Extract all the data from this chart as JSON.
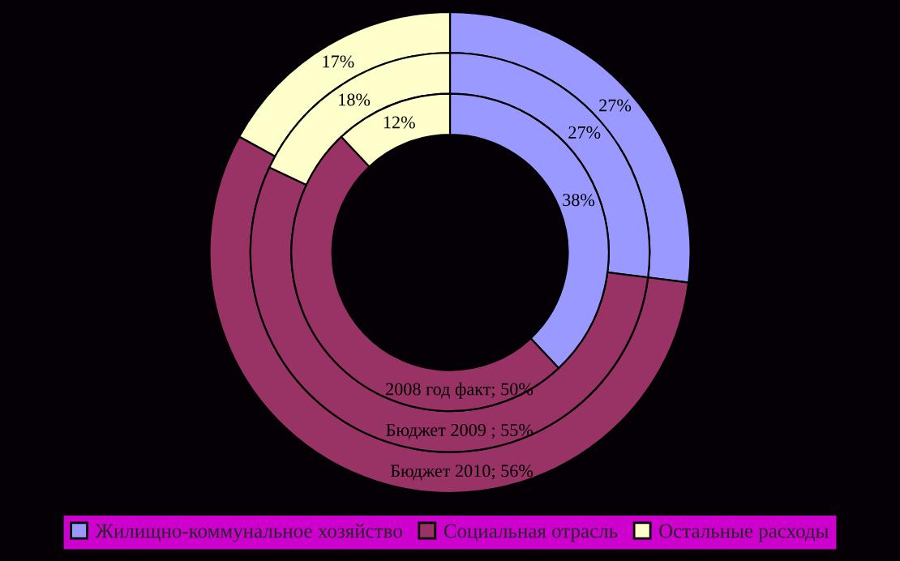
{
  "chart_data": {
    "type": "donut",
    "categories": [
      "Жилищно-коммунальное хозяйство",
      "Социальная отрасль",
      "Остальные расходы"
    ],
    "colors": [
      "#9999ff",
      "#993366",
      "#ffffcc"
    ],
    "series": [
      {
        "name": "Бюджет 2010",
        "values": [
          27,
          56,
          17
        ],
        "value_labels": [
          "27%",
          "; 56%",
          "17%"
        ]
      },
      {
        "name": "Бюджет 2009 ",
        "values": [
          27,
          55,
          18
        ],
        "value_labels": [
          "27%",
          "; 55%",
          "18%"
        ]
      },
      {
        "name": "2008 год факт",
        "values": [
          38,
          50,
          12
        ],
        "value_labels": [
          "38%",
          "; 50%",
          "12%"
        ]
      }
    ],
    "legend": "bottom"
  }
}
